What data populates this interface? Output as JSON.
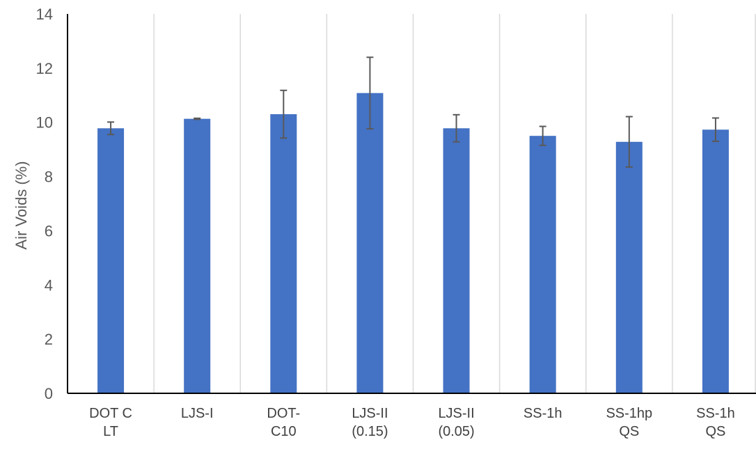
{
  "chart_data": {
    "type": "bar",
    "title": "",
    "xlabel": "",
    "ylabel": "Air Voids (%)",
    "ylim": [
      0,
      14
    ],
    "yticks": [
      0,
      2,
      4,
      6,
      8,
      10,
      12,
      14
    ],
    "grid": "vertical",
    "categories": [
      [
        "DOT C",
        "LT"
      ],
      [
        "LJS-I"
      ],
      [
        "DOT-",
        "C10"
      ],
      [
        "LJS-II",
        "(0.15)"
      ],
      [
        "LJS-II",
        "(0.05)"
      ],
      [
        "SS-1h"
      ],
      [
        "SS-1hp",
        "QS"
      ],
      [
        "SS-1h",
        "QS"
      ]
    ],
    "values": [
      9.78,
      10.13,
      10.3,
      11.08,
      9.78,
      9.5,
      9.28,
      9.73
    ],
    "error": [
      0.23,
      0.02,
      0.88,
      1.32,
      0.5,
      0.35,
      0.93,
      0.43
    ],
    "colors": {
      "bar": "#4472C4",
      "error_bar": "#595959",
      "grid": "#d9d9d9",
      "axis": "#000000"
    }
  }
}
